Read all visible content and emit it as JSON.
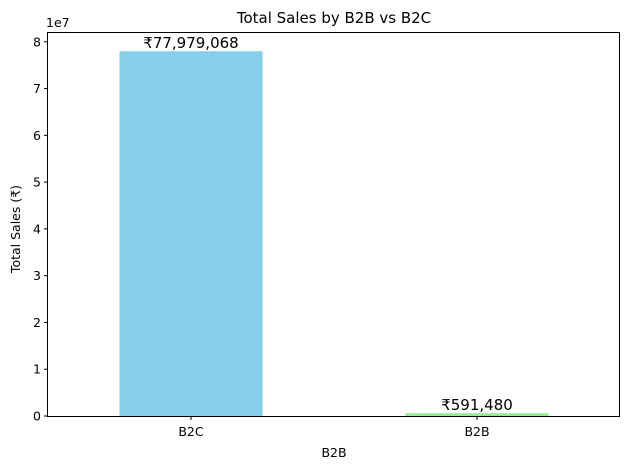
{
  "chart_data": {
    "type": "bar",
    "title": "Total Sales by B2B vs B2C",
    "xlabel": "B2B",
    "ylabel": "Total Sales (₹)",
    "y_scale_label": "1e7",
    "categories": [
      "B2C",
      "B2B"
    ],
    "values": [
      77979068,
      591480
    ],
    "data_labels": [
      "₹77,979,068",
      "₹591,480"
    ],
    "colors": [
      "#87ceeb",
      "#90ee90"
    ],
    "ylim": [
      0,
      81877021
    ],
    "yticks": [
      0,
      10000000,
      20000000,
      30000000,
      40000000,
      50000000,
      60000000,
      70000000,
      80000000
    ],
    "ytick_labels": [
      "0",
      "1",
      "2",
      "3",
      "4",
      "5",
      "6",
      "7",
      "8"
    ],
    "grid": false,
    "legend": false
  }
}
